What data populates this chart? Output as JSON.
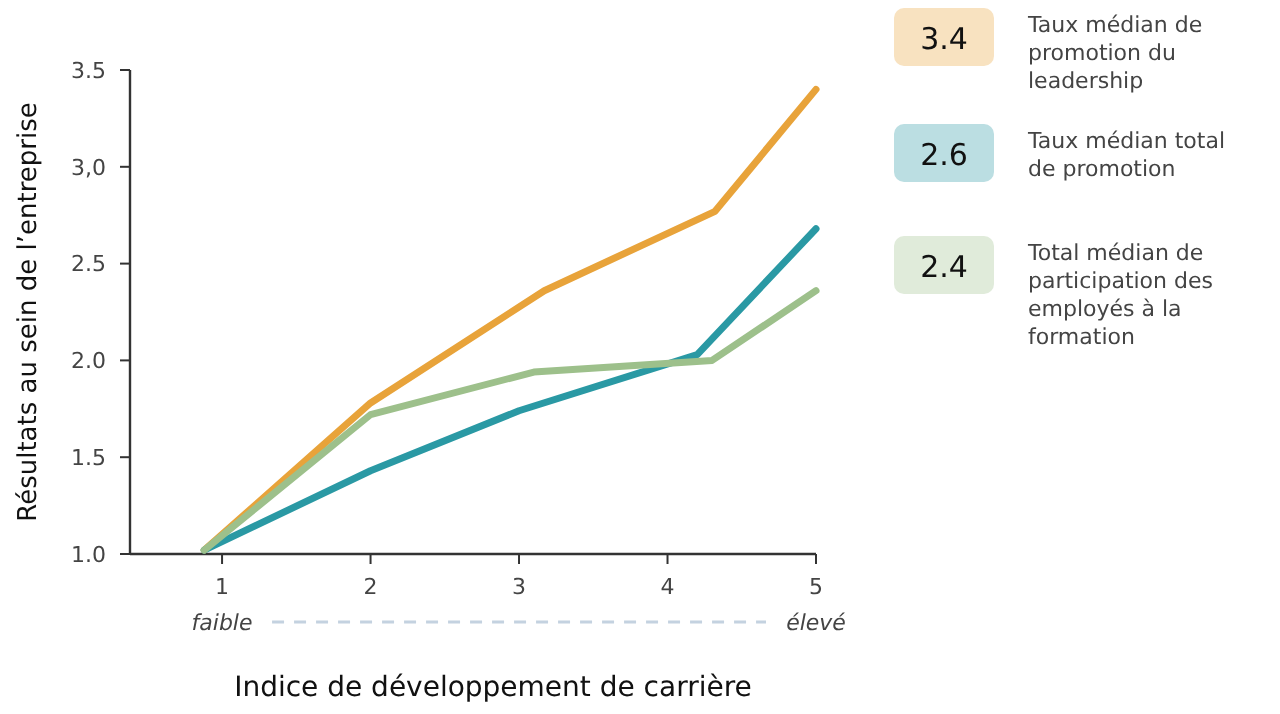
{
  "chart_data": {
    "type": "line",
    "xlabel": "Indice de développement de carrière",
    "ylabel": "Résultats au sein de l’entreprise",
    "xlim": [
      0.38,
      5
    ],
    "xticks": [
      1,
      2,
      3,
      4,
      5
    ],
    "ylim": [
      1.0,
      3.5
    ],
    "yticks": [
      {
        "value": 1,
        "label": "1.0"
      },
      {
        "value": 1.5,
        "label": "1.5"
      },
      {
        "value": 2,
        "label": "2.0"
      },
      {
        "value": 2.5,
        "label": "2.5"
      },
      {
        "value": 3,
        "label": "3,0"
      },
      {
        "value": 3.5,
        "label": "3.5"
      }
    ],
    "grid": false,
    "legend": "right",
    "marker": "none",
    "line_style": "solid",
    "series": [
      {
        "name": "Taux médian de promotion du leadership",
        "color": "#e8a33a",
        "x": [
          0.88,
          2,
          3.17,
          4.32,
          5
        ],
        "values": [
          1.02,
          1.78,
          2.36,
          2.77,
          3.4
        ]
      },
      {
        "name": "Taux médian total de promotion",
        "color": "#2a99a4",
        "x": [
          0.88,
          2,
          3,
          4.2,
          5
        ],
        "values": [
          1.02,
          1.43,
          1.74,
          2.03,
          2.68
        ]
      },
      {
        "name": "Total médian de participation des employés à la formation",
        "color": "#9dc08b",
        "x": [
          0.88,
          2,
          3.1,
          4.3,
          5
        ],
        "values": [
          1.02,
          1.72,
          1.94,
          2.0,
          2.36
        ]
      }
    ],
    "annotations": [
      "3.4",
      "2.6",
      "2.4",
      "faible",
      "élevé"
    ]
  }
}
